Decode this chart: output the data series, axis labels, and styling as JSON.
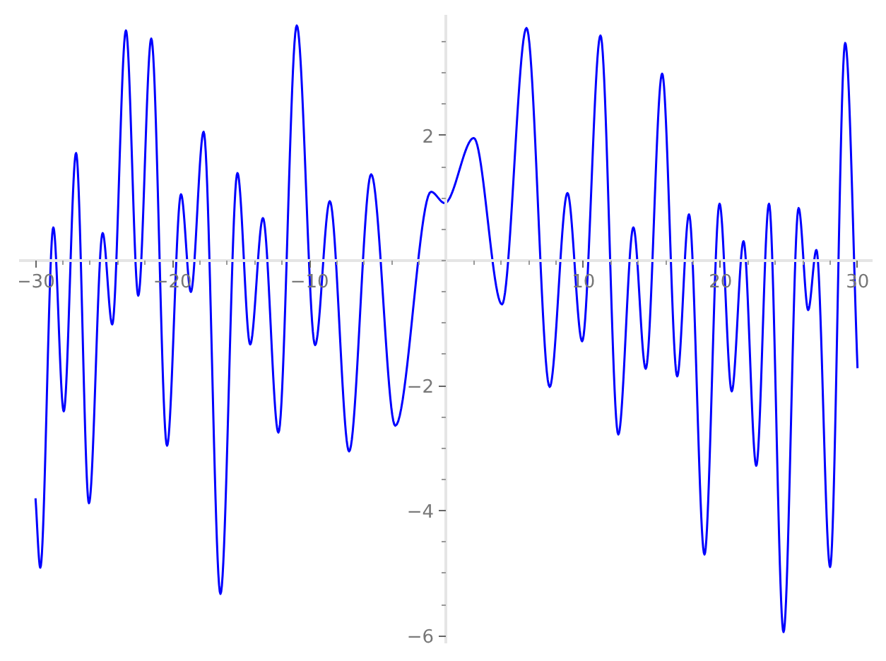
{
  "chart_data": {
    "type": "line",
    "x": [
      -30.0,
      -29.65,
      -28.7,
      -27.94,
      -27.04,
      -26.1,
      -25.1,
      -24.4,
      -23.4,
      -22.5,
      -21.55,
      -20.4,
      -19.38,
      -18.66,
      -17.73,
      -16.5,
      -15.26,
      -14.33,
      -13.4,
      -12.27,
      -10.93,
      -9.59,
      -8.52,
      -7.11,
      -5.5,
      -3.74,
      -1.13,
      -0.13,
      1.99,
      4.05,
      5.84,
      7.53,
      8.83,
      9.9,
      11.24,
      12.54,
      13.64,
      14.54,
      15.74,
      16.84,
      17.7,
      18.83,
      19.93,
      20.82,
      21.68,
      22.61,
      23.54,
      24.6,
      25.7,
      26.4,
      27.0,
      28.0,
      29.1,
      30.0
    ],
    "series": [
      {
        "color": "#0000ff",
        "values": [
          -3.8,
          -4.91,
          0.53,
          -2.41,
          1.72,
          -3.88,
          0.44,
          -1.02,
          3.68,
          -0.56,
          3.55,
          -2.96,
          1.06,
          -0.5,
          2.06,
          -5.33,
          1.4,
          -1.34,
          0.68,
          -2.75,
          3.76,
          -1.35,
          0.95,
          -3.05,
          1.38,
          -2.64,
          1.1,
          0.92,
          1.96,
          -0.7,
          3.72,
          -2.02,
          1.08,
          -1.29,
          3.6,
          -2.78,
          0.53,
          -1.73,
          2.99,
          -1.85,
          0.74,
          -4.7,
          0.91,
          -2.09,
          0.31,
          -3.28,
          0.91,
          -5.94,
          0.84,
          -0.79,
          0.17,
          -4.9,
          3.48,
          -1.72
        ]
      }
    ],
    "xlim": [
      -31.2,
      31.1
    ],
    "ylim": [
      -6.12,
      3.93
    ],
    "xticks": [
      {
        "value": -30,
        "label": "−30"
      },
      {
        "value": -28,
        "label": null
      },
      {
        "value": -26,
        "label": null
      },
      {
        "value": -24,
        "label": null
      },
      {
        "value": -22,
        "label": null
      },
      {
        "value": -20,
        "label": "−20"
      },
      {
        "value": -18,
        "label": null
      },
      {
        "value": -16,
        "label": null
      },
      {
        "value": -14,
        "label": null
      },
      {
        "value": -12,
        "label": null
      },
      {
        "value": -10,
        "label": "−10"
      },
      {
        "value": -8,
        "label": null
      },
      {
        "value": -6,
        "label": null
      },
      {
        "value": -4,
        "label": null
      },
      {
        "value": -2,
        "label": null
      },
      {
        "value": 0,
        "label": null
      },
      {
        "value": 2,
        "label": null
      },
      {
        "value": 4,
        "label": null
      },
      {
        "value": 6,
        "label": null
      },
      {
        "value": 8,
        "label": null
      },
      10,
      {
        "value": 12,
        "label": null
      },
      {
        "value": 14,
        "label": null
      },
      {
        "value": 16,
        "label": null
      },
      {
        "value": 18,
        "label": null
      },
      20,
      {
        "value": 22,
        "label": null
      },
      {
        "value": 24,
        "label": null
      },
      {
        "value": 26,
        "label": null
      },
      {
        "value": 28,
        "label": null
      },
      30
    ],
    "yticks": [
      {
        "value": -6,
        "label": "−6"
      },
      {
        "value": -5.5,
        "label": null
      },
      {
        "value": -5,
        "label": null
      },
      {
        "value": -4.5,
        "label": null
      },
      {
        "value": -4,
        "label": "−4"
      },
      {
        "value": -3.5,
        "label": null
      },
      {
        "value": -3,
        "label": null
      },
      {
        "value": -2.5,
        "label": null
      },
      {
        "value": -2,
        "label": "−2"
      },
      {
        "value": -1.5,
        "label": null
      },
      {
        "value": -1,
        "label": null
      },
      {
        "value": -0.5,
        "label": null
      },
      {
        "value": 0,
        "label": null
      },
      {
        "value": 0.5,
        "label": null
      },
      {
        "value": 1,
        "label": null
      },
      {
        "value": 1.5,
        "label": null
      },
      2,
      {
        "value": 2.5,
        "label": null
      },
      {
        "value": 3,
        "label": null
      },
      {
        "value": 3.5,
        "label": null
      }
    ],
    "grid": false,
    "marker": "none",
    "line_style": "solid"
  }
}
